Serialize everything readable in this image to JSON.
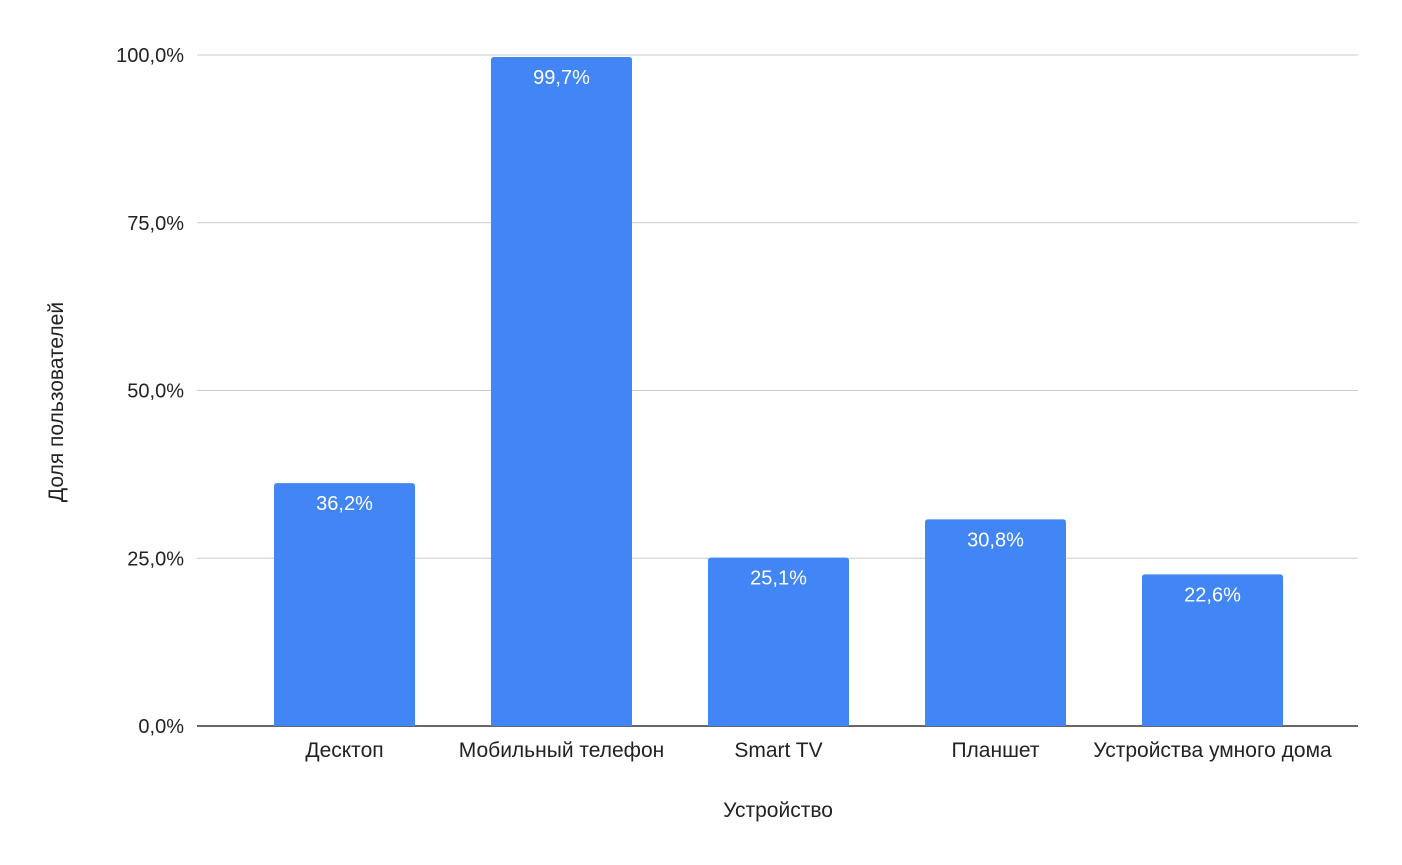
{
  "chart_data": {
    "type": "bar",
    "title": "",
    "xlabel": "Устройство",
    "ylabel": "Доля пользователей",
    "categories": [
      "Десктоп",
      "Мобильный телефон",
      "Smart TV",
      "Планшет",
      "Устройства умного дома"
    ],
    "values": [
      36.2,
      99.7,
      25.1,
      30.8,
      22.6
    ],
    "data_labels": [
      "36,2%",
      "99,7%",
      "25,1%",
      "30,8%",
      "22,6%"
    ],
    "ylim": [
      0,
      100
    ],
    "yticks": [
      0,
      25,
      50,
      75,
      100
    ],
    "ytick_labels": [
      "0,0%",
      "25,0%",
      "50,0%",
      "75,0%",
      "100,0%"
    ],
    "grid": true,
    "legend": "none",
    "colors": {
      "bar": "#4285f4",
      "grid": "#cccccc",
      "axis": "#333333",
      "label": "#ffffff"
    }
  }
}
